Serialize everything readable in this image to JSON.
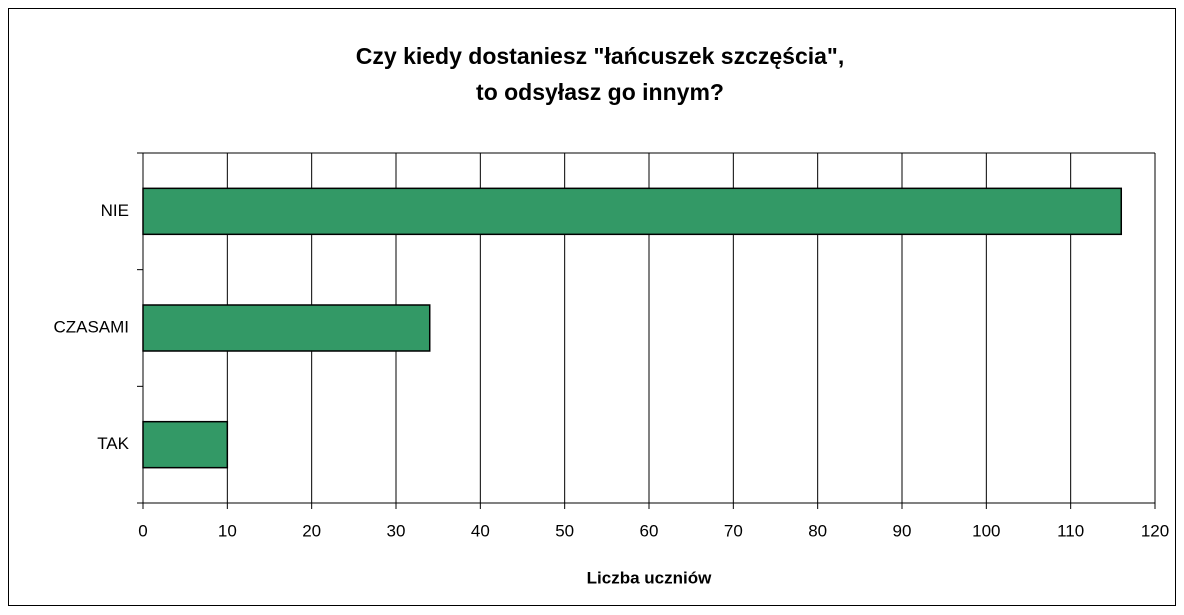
{
  "chart_data": {
    "type": "barh",
    "title": [
      "Czy kiedy dostaniesz \"łańcuszek szczęścia\",",
      "to odsyłasz go innym?"
    ],
    "x_label": "Liczba uczniów",
    "categories": [
      "NIE",
      "CZASAMI",
      "TAK"
    ],
    "values": [
      116,
      34,
      10
    ],
    "color": "#339966",
    "xlim": [
      0,
      120
    ],
    "xticks": [
      0,
      10,
      20,
      30,
      40,
      50,
      60,
      70,
      80,
      90,
      100,
      110,
      120
    ],
    "grid": true
  }
}
